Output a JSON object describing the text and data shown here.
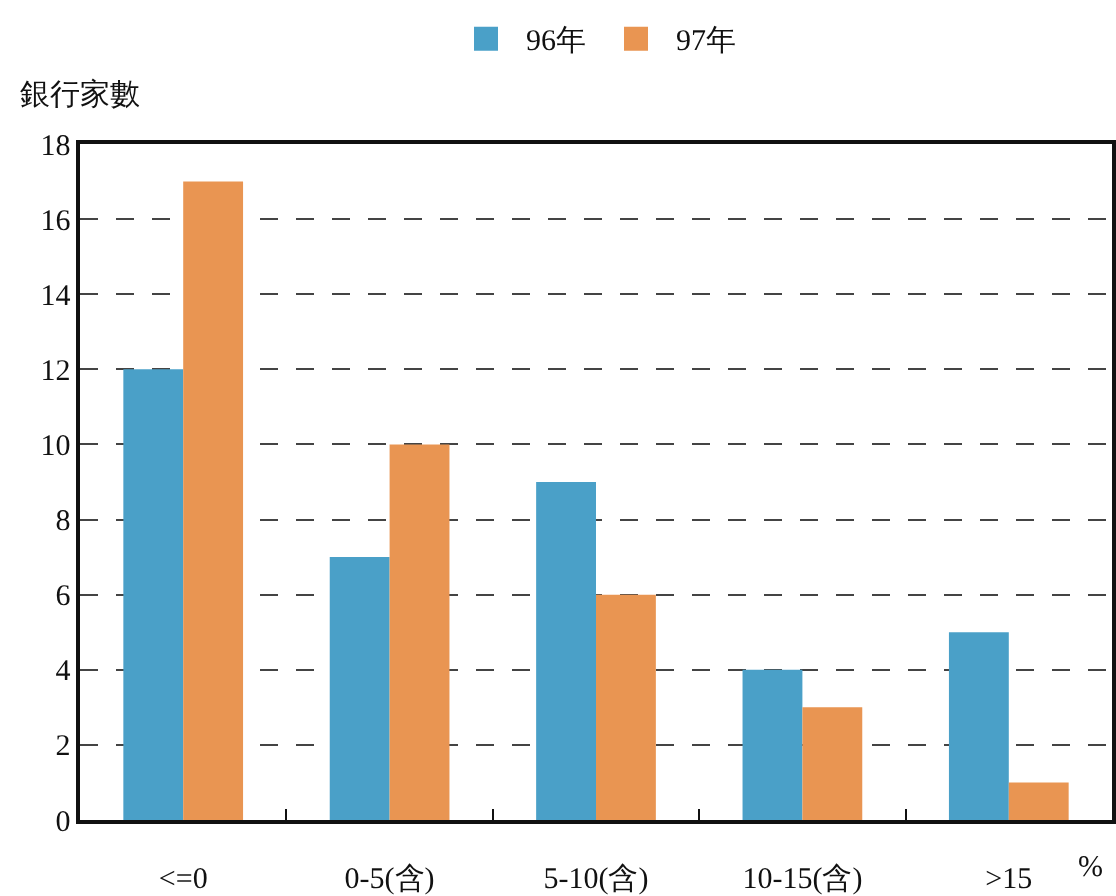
{
  "chart_data": {
    "type": "bar",
    "ylabel": "銀行家數",
    "xlabel": "%",
    "categories": [
      "<=0",
      "0-5(含)",
      "5-10(含)",
      "10-15(含)",
      ">15"
    ],
    "series": [
      {
        "name": "96年",
        "color": "#4aa0c8",
        "values": [
          12,
          7,
          9,
          4,
          5
        ]
      },
      {
        "name": "97年",
        "color": "#e99552",
        "values": [
          17,
          10,
          6,
          3,
          1
        ]
      }
    ],
    "ylim": [
      0,
      18
    ],
    "yticks": [
      0,
      2,
      4,
      6,
      8,
      10,
      12,
      14,
      16,
      18
    ],
    "grid": "y",
    "legend": "top"
  }
}
